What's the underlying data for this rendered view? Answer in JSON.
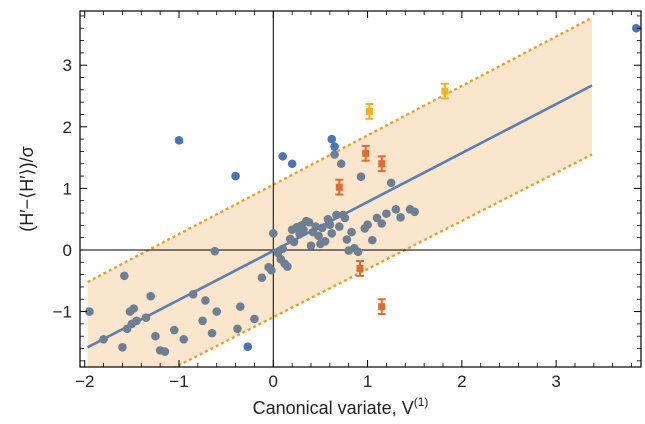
{
  "chart_data": {
    "type": "scatter",
    "title": "",
    "xlabel": {
      "prefix": "Canonical variate, V",
      "superscript": "(1)"
    },
    "ylabel": {
      "text": "(H′−⟨H′⟩)/σ"
    },
    "xlim": [
      -2.05,
      3.9
    ],
    "ylim": [
      -1.9,
      3.88
    ],
    "xticks": [
      -2,
      -1,
      0,
      1,
      2,
      3
    ],
    "yticks": [
      -1,
      0,
      1,
      2,
      3
    ],
    "xtick_labels": [
      "−2",
      "−1",
      "0",
      "1",
      "2",
      "3"
    ],
    "ytick_labels": [
      "−1",
      "0",
      "1",
      "2",
      "3"
    ],
    "grid": false,
    "colors": {
      "band_fill": "#f9e6cc",
      "band_border": "#e3a12a",
      "fit_line": "#5b7fb5",
      "gray_points": "#6e7f94",
      "blue_points": "#4a74b8",
      "orange_points": "#e06a33",
      "yellow_points": "#f1b420",
      "axis_lines": "#000000"
    },
    "fit_line": {
      "x": [
        -1.97,
        3.38
      ],
      "y": [
        -1.58,
        2.67
      ]
    },
    "band": {
      "upper": {
        "x": [
          -1.97,
          3.38
        ],
        "y": [
          -0.52,
          3.77
        ]
      },
      "lower": {
        "x": [
          -1.97,
          3.38
        ],
        "y": [
          -2.63,
          1.55
        ]
      }
    },
    "series": [
      {
        "marker": "circle",
        "color_key": "gray_points",
        "points": [
          [
            -1.95,
            -1.0
          ],
          [
            -1.8,
            -1.45
          ],
          [
            -1.6,
            -1.58
          ],
          [
            -1.58,
            -0.42
          ],
          [
            -1.55,
            -1.28
          ],
          [
            -1.52,
            -1.0
          ],
          [
            -1.5,
            -1.2
          ],
          [
            -1.48,
            -0.95
          ],
          [
            -1.45,
            -1.15
          ],
          [
            -1.35,
            -1.1
          ],
          [
            -1.3,
            -0.75
          ],
          [
            -1.25,
            -1.4
          ],
          [
            -1.2,
            -1.63
          ],
          [
            -1.15,
            -1.65
          ],
          [
            -1.05,
            -1.3
          ],
          [
            -0.95,
            -1.45
          ],
          [
            -0.85,
            -0.72
          ],
          [
            -0.75,
            -1.15
          ],
          [
            -0.72,
            -0.82
          ],
          [
            -0.65,
            -1.35
          ],
          [
            -0.62,
            -0.02
          ],
          [
            -0.6,
            -1.0
          ],
          [
            -0.38,
            -1.28
          ],
          [
            -0.35,
            -0.92
          ],
          [
            -0.2,
            -1.12
          ],
          [
            -0.12,
            -0.45
          ],
          [
            -0.05,
            -0.28
          ],
          [
            -0.02,
            -0.33
          ],
          [
            0.0,
            0.27
          ],
          [
            0.05,
            -0.05
          ],
          [
            0.08,
            -0.15
          ],
          [
            0.1,
            0.02
          ],
          [
            0.12,
            -0.22
          ],
          [
            0.15,
            -0.27
          ],
          [
            0.18,
            0.18
          ],
          [
            0.2,
            0.33
          ],
          [
            0.22,
            0.13
          ],
          [
            0.25,
            0.37
          ],
          [
            0.28,
            0.26
          ],
          [
            0.3,
            0.4
          ],
          [
            0.32,
            0.33
          ],
          [
            0.35,
            0.47
          ],
          [
            0.38,
            0.45
          ],
          [
            0.4,
            0.07
          ],
          [
            0.42,
            0.29
          ],
          [
            0.45,
            0.38
          ],
          [
            0.48,
            0.23
          ],
          [
            0.5,
            0.1
          ],
          [
            0.52,
            0.36
          ],
          [
            0.55,
            0.14
          ],
          [
            0.58,
            0.5
          ],
          [
            0.6,
            0.41
          ],
          [
            0.62,
            0.27
          ],
          [
            0.65,
            1.55
          ],
          [
            0.67,
            0.57
          ],
          [
            0.7,
            0.38
          ],
          [
            0.72,
            1.4
          ],
          [
            0.74,
            0.57
          ],
          [
            0.76,
            0.52
          ],
          [
            0.78,
            0.17
          ],
          [
            0.8,
            -0.01
          ],
          [
            0.83,
            0.29
          ],
          [
            0.86,
            0.03
          ],
          [
            0.9,
            -0.03
          ],
          [
            0.93,
            1.19
          ],
          [
            0.97,
            0.35
          ],
          [
            1.0,
            0.41
          ],
          [
            1.05,
            0.16
          ],
          [
            1.1,
            0.52
          ],
          [
            1.15,
            0.43
          ],
          [
            1.2,
            0.59
          ],
          [
            1.25,
            1.09
          ],
          [
            1.3,
            0.66
          ],
          [
            1.35,
            0.53
          ],
          [
            1.45,
            0.66
          ],
          [
            1.5,
            0.62
          ]
        ]
      },
      {
        "marker": "circle",
        "color_key": "blue_points",
        "points": [
          [
            -1.0,
            1.78
          ],
          [
            -0.4,
            1.2
          ],
          [
            -0.27,
            -1.57
          ],
          [
            0.1,
            1.52
          ],
          [
            0.2,
            1.4
          ],
          [
            0.62,
            1.8
          ],
          [
            0.65,
            1.68
          ],
          [
            3.85,
            3.6
          ]
        ]
      },
      {
        "marker": "square-errorbar",
        "color_key": "orange_points",
        "points": [
          [
            0.7,
            1.02,
            0.12
          ],
          [
            0.92,
            -0.3,
            0.12
          ],
          [
            0.98,
            1.57,
            0.12
          ],
          [
            1.15,
            1.4,
            0.12
          ],
          [
            1.15,
            -0.92,
            0.12
          ]
        ]
      },
      {
        "marker": "square-errorbar",
        "color_key": "yellow_points",
        "points": [
          [
            1.02,
            2.25,
            0.12
          ],
          [
            1.82,
            2.58,
            0.12
          ]
        ]
      }
    ]
  }
}
